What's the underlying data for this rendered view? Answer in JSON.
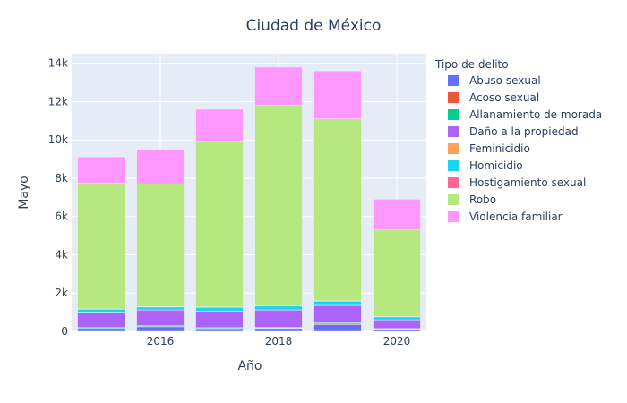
{
  "chart_data": {
    "type": "bar",
    "barmode": "stack",
    "title": "Ciudad de México",
    "xlabel": "Año",
    "ylabel": "Mayo",
    "legend_title": "Tipo de delito",
    "legend_position": "right",
    "grid": true,
    "x": [
      2015,
      2016,
      2017,
      2018,
      2019,
      2020
    ],
    "x_ticks": [
      2016,
      2018,
      2020
    ],
    "x_tick_labels": [
      "2016",
      "2018",
      "2020"
    ],
    "ylim": [
      0,
      14500
    ],
    "y_ticks": [
      0,
      2000,
      4000,
      6000,
      8000,
      10000,
      12000,
      14000
    ],
    "y_tick_labels": [
      "0",
      "2k",
      "4k",
      "6k",
      "8k",
      "10k",
      "12k",
      "14k"
    ],
    "series": [
      {
        "name": "Abuso sexual",
        "color": "#636efa",
        "values": [
          150,
          240,
          140,
          150,
          350,
          110
        ]
      },
      {
        "name": "Acoso sexual",
        "color": "#EF553B",
        "values": [
          10,
          15,
          15,
          20,
          60,
          15
        ]
      },
      {
        "name": "Allanamiento de morada",
        "color": "#00cc96",
        "values": [
          40,
          40,
          40,
          40,
          40,
          25
        ]
      },
      {
        "name": "Daño a la propiedad",
        "color": "#ab63fa",
        "values": [
          800,
          820,
          850,
          900,
          900,
          450
        ]
      },
      {
        "name": "Feminicidio",
        "color": "#FFA15A",
        "values": [
          5,
          5,
          5,
          10,
          10,
          5
        ]
      },
      {
        "name": "Homicidio",
        "color": "#19d3f3",
        "values": [
          150,
          150,
          200,
          200,
          200,
          150
        ]
      },
      {
        "name": "Hostigamiento sexual",
        "color": "#FF6692",
        "values": [
          15,
          20,
          20,
          20,
          40,
          15
        ]
      },
      {
        "name": "Robo",
        "color": "#B6E880",
        "values": [
          6580,
          6410,
          8630,
          10460,
          9500,
          4530
        ]
      },
      {
        "name": "Violencia familiar",
        "color": "#FF97FF",
        "values": [
          1360,
          1800,
          1700,
          2000,
          2500,
          1600
        ]
      }
    ]
  }
}
